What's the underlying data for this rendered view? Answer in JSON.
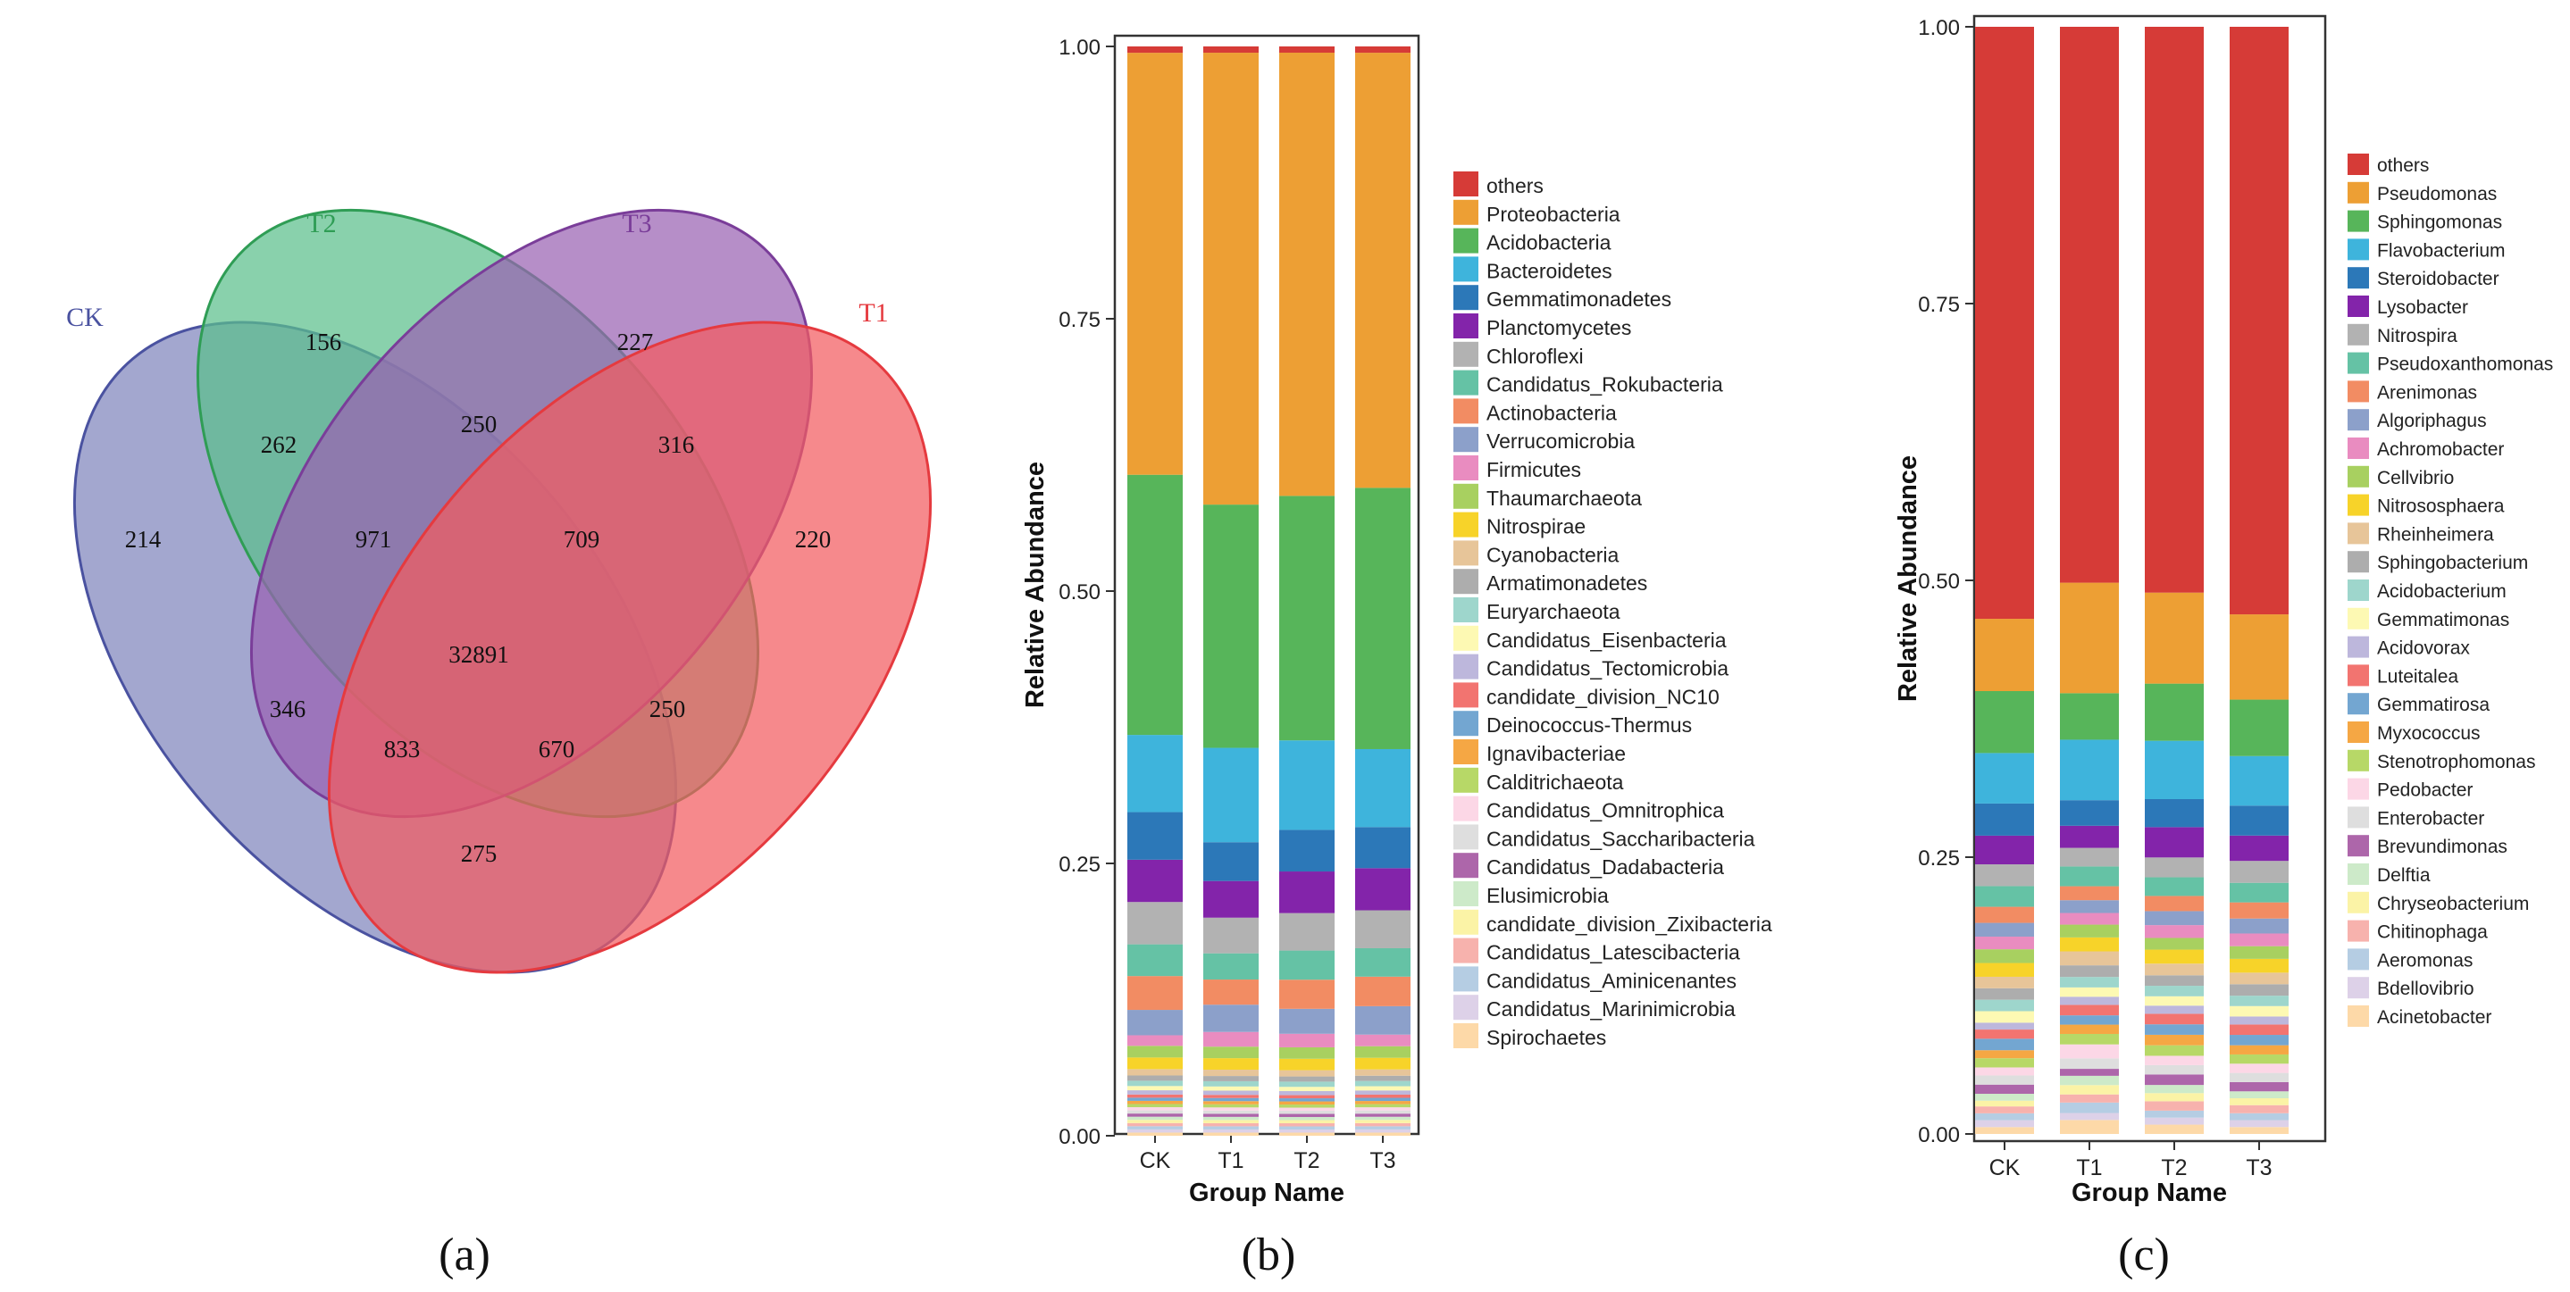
{
  "panels": {
    "a": {
      "caption": "(a)"
    },
    "b": {
      "caption": "(b)"
    },
    "c": {
      "caption": "(c)"
    }
  },
  "colors": {
    "ck": "#7f85bd",
    "t2": "#5bbf8c",
    "t3": "#9a63b3",
    "t1": "#f25b5f",
    "ck_stroke": "#4a52a0",
    "t2_stroke": "#2f9d55",
    "t3_stroke": "#7a3d99",
    "t1_stroke": "#e53a3f"
  },
  "chart_data": [
    {
      "type": "venn",
      "sets": [
        {
          "name": "CK",
          "color": "#7f85bd"
        },
        {
          "name": "T2",
          "color": "#5bbf8c"
        },
        {
          "name": "T3",
          "color": "#9a63b3"
        },
        {
          "name": "T1",
          "color": "#f25b5f"
        }
      ],
      "regions": [
        {
          "sets": [
            "CK"
          ],
          "value": "214"
        },
        {
          "sets": [
            "T2"
          ],
          "value": "156"
        },
        {
          "sets": [
            "T3"
          ],
          "value": "227"
        },
        {
          "sets": [
            "T1"
          ],
          "value": "220"
        },
        {
          "sets": [
            "CK",
            "T2"
          ],
          "value": "262"
        },
        {
          "sets": [
            "T2",
            "T3"
          ],
          "value": "250"
        },
        {
          "sets": [
            "T3",
            "T1"
          ],
          "value": "316"
        },
        {
          "sets": [
            "CK",
            "T2",
            "T3"
          ],
          "value": "971"
        },
        {
          "sets": [
            "T2",
            "T3",
            "T1"
          ],
          "value": "709"
        },
        {
          "sets": [
            "CK",
            "T2",
            "T3",
            "T1"
          ],
          "value": "32891"
        },
        {
          "sets": [
            "CK",
            "T3"
          ],
          "value": "346"
        },
        {
          "sets": [
            "T2",
            "T1"
          ],
          "value": "250"
        },
        {
          "sets": [
            "CK",
            "T3",
            "T1"
          ],
          "value": "833"
        },
        {
          "sets": [
            "CK",
            "T2",
            "T1"
          ],
          "value": "670"
        },
        {
          "sets": [
            "CK",
            "T1"
          ],
          "value": "275"
        }
      ]
    },
    {
      "type": "bar",
      "stacked": true,
      "xlabel": "Group Name",
      "ylabel": "Relative Abundance",
      "ylim": [
        0,
        1
      ],
      "yticks": [
        "0.00",
        "0.25",
        "0.50",
        "0.75",
        "1.00"
      ],
      "categories": [
        "CK",
        "T1",
        "T2",
        "T3"
      ],
      "legend_position": "right",
      "series": [
        {
          "name": "Spirochaetes",
          "color": "#fdd9a8",
          "values": [
            0.003,
            0.003,
            0.003,
            0.003
          ]
        },
        {
          "name": "Candidatus_Marinimicrobia",
          "color": "#ddd1e8",
          "values": [
            0.003,
            0.003,
            0.003,
            0.003
          ]
        },
        {
          "name": "Candidatus_Aminicenantes",
          "color": "#b5cde3",
          "values": [
            0.003,
            0.003,
            0.003,
            0.003
          ]
        },
        {
          "name": "Candidatus_Latescibacteria",
          "color": "#f7b2ad",
          "values": [
            0.003,
            0.003,
            0.003,
            0.003
          ]
        },
        {
          "name": "candidate_division_Zixibacteria",
          "color": "#fbf3a6",
          "values": [
            0.003,
            0.003,
            0.003,
            0.003
          ]
        },
        {
          "name": "Elusimicrobia",
          "color": "#cdeac9",
          "values": [
            0.003,
            0.003,
            0.003,
            0.003
          ]
        },
        {
          "name": "Candidatus_Dadabacteria",
          "color": "#ad66aa",
          "values": [
            0.003,
            0.003,
            0.003,
            0.003
          ]
        },
        {
          "name": "Candidatus_Saccharibacteria",
          "color": "#dedede",
          "values": [
            0.003,
            0.003,
            0.003,
            0.003
          ]
        },
        {
          "name": "Candidatus_Omnitrophica",
          "color": "#fcd7e6",
          "values": [
            0.003,
            0.003,
            0.003,
            0.003
          ]
        },
        {
          "name": "Calditrichaeota",
          "color": "#b7d867",
          "values": [
            0.003,
            0.003,
            0.003,
            0.003
          ]
        },
        {
          "name": "Ignavibacteriae",
          "color": "#f5a744",
          "values": [
            0.003,
            0.003,
            0.003,
            0.003
          ]
        },
        {
          "name": "Deinococcus-Thermus",
          "color": "#73a6d1",
          "values": [
            0.003,
            0.003,
            0.003,
            0.003
          ]
        },
        {
          "name": "candidate_division_NC10",
          "color": "#f27470",
          "values": [
            0.003,
            0.003,
            0.003,
            0.003
          ]
        },
        {
          "name": "Candidatus_Tectomicrobia",
          "color": "#bdb7dc",
          "values": [
            0.004,
            0.004,
            0.004,
            0.004
          ]
        },
        {
          "name": "Candidatus_Eisenbacteria",
          "color": "#fdf9b3",
          "values": [
            0.004,
            0.004,
            0.004,
            0.004
          ]
        },
        {
          "name": "Euryarchaeota",
          "color": "#9ed6cc",
          "values": [
            0.005,
            0.005,
            0.005,
            0.005
          ]
        },
        {
          "name": "Armatimonadetes",
          "color": "#adadad",
          "values": [
            0.005,
            0.005,
            0.005,
            0.005
          ]
        },
        {
          "name": "Cyanobacteria",
          "color": "#e7c599",
          "values": [
            0.006,
            0.006,
            0.006,
            0.006
          ]
        },
        {
          "name": "Nitrospirae",
          "color": "#f7d329",
          "values": [
            0.011,
            0.011,
            0.011,
            0.011
          ]
        },
        {
          "name": "Thaumarchaeota",
          "color": "#a8d060",
          "values": [
            0.011,
            0.011,
            0.011,
            0.011
          ]
        },
        {
          "name": "Firmicutes",
          "color": "#e98cc0",
          "values": [
            0.01,
            0.014,
            0.013,
            0.011
          ]
        },
        {
          "name": "Verrucomicrobia",
          "color": "#8ca0ca",
          "values": [
            0.024,
            0.026,
            0.024,
            0.027
          ]
        },
        {
          "name": "Actinobacteria",
          "color": "#f28c63",
          "values": [
            0.032,
            0.024,
            0.028,
            0.028
          ]
        },
        {
          "name": "Candidatus_Rokubacteria",
          "color": "#65c2a5",
          "values": [
            0.03,
            0.025,
            0.028,
            0.027
          ]
        },
        {
          "name": "Chloroflexi",
          "color": "#b2b2b2",
          "values": [
            0.04,
            0.034,
            0.036,
            0.036
          ]
        },
        {
          "name": "Planctomycetes",
          "color": "#8324aa",
          "values": [
            0.04,
            0.035,
            0.04,
            0.04
          ]
        },
        {
          "name": "Gemmatimonadetes",
          "color": "#2c78b8",
          "values": [
            0.045,
            0.037,
            0.04,
            0.039
          ]
        },
        {
          "name": "Bacteroidetes",
          "color": "#3eb4dc",
          "values": [
            0.073,
            0.09,
            0.086,
            0.074
          ]
        },
        {
          "name": "Acidobacteria",
          "color": "#57b55a",
          "values": [
            0.246,
            0.232,
            0.235,
            0.248
          ]
        },
        {
          "name": "Proteobacteria",
          "color": "#ed9f34",
          "values": [
            0.399,
            0.431,
            0.426,
            0.413
          ]
        },
        {
          "name": "others",
          "color": "#d63b37",
          "values": [
            0.006,
            0.006,
            0.006,
            0.006
          ]
        }
      ]
    },
    {
      "type": "bar",
      "stacked": true,
      "xlabel": "Group Name",
      "ylabel": "Relative Abundance",
      "ylim": [
        0,
        1
      ],
      "yticks": [
        "0.00",
        "0.25",
        "0.50",
        "0.75",
        "1.00"
      ],
      "categories": [
        "CK",
        "T1",
        "T2",
        "T3"
      ],
      "legend_position": "right",
      "series": [
        {
          "name": "Acinetobacter",
          "color": "#fdd9a8",
          "values": [
            0.006,
            0.012,
            0.008,
            0.006
          ]
        },
        {
          "name": "Bdellovibrio",
          "color": "#ddd1e8",
          "values": [
            0.006,
            0.006,
            0.006,
            0.006
          ]
        },
        {
          "name": "Aeromonas",
          "color": "#b5cde3",
          "values": [
            0.006,
            0.009,
            0.006,
            0.006
          ]
        },
        {
          "name": "Chitinophaga",
          "color": "#f7b2ad",
          "values": [
            0.006,
            0.007,
            0.008,
            0.007
          ]
        },
        {
          "name": "Chryseobacterium",
          "color": "#fbf3a6",
          "values": [
            0.005,
            0.008,
            0.007,
            0.006
          ]
        },
        {
          "name": "Delftia",
          "color": "#cdeac9",
          "values": [
            0.006,
            0.008,
            0.007,
            0.006
          ]
        },
        {
          "name": "Brevundimonas",
          "color": "#ad66aa",
          "values": [
            0.008,
            0.006,
            0.009,
            0.008
          ]
        },
        {
          "name": "Enterobacter",
          "color": "#dedede",
          "values": [
            0.008,
            0.009,
            0.008,
            0.008
          ]
        },
        {
          "name": "Pedobacter",
          "color": "#fcd7e6",
          "values": [
            0.007,
            0.012,
            0.008,
            0.008
          ]
        },
        {
          "name": "Stenotrophomonas",
          "color": "#b7d867",
          "values": [
            0.008,
            0.009,
            0.009,
            0.008
          ]
        },
        {
          "name": "Myxococcus",
          "color": "#f5a744",
          "values": [
            0.007,
            0.008,
            0.009,
            0.008
          ]
        },
        {
          "name": "Gemmatirosa",
          "color": "#73a6d1",
          "values": [
            0.01,
            0.008,
            0.009,
            0.009
          ]
        },
        {
          "name": "Luteitalea",
          "color": "#f27470",
          "values": [
            0.008,
            0.009,
            0.009,
            0.009
          ]
        },
        {
          "name": "Acidovorax",
          "color": "#bdb7dc",
          "values": [
            0.006,
            0.007,
            0.007,
            0.007
          ]
        },
        {
          "name": "Gemmatimonas",
          "color": "#fdf9b3",
          "values": [
            0.01,
            0.008,
            0.008,
            0.009
          ]
        },
        {
          "name": "Acidobacterium",
          "color": "#9ed6cc",
          "values": [
            0.01,
            0.009,
            0.009,
            0.009
          ]
        },
        {
          "name": "Sphingobacterium",
          "color": "#adadad",
          "values": [
            0.01,
            0.01,
            0.009,
            0.01
          ]
        },
        {
          "name": "Rheinheimera",
          "color": "#e7c599",
          "values": [
            0.01,
            0.012,
            0.01,
            0.01
          ]
        },
        {
          "name": "Nitrososphaera",
          "color": "#f7d329",
          "values": [
            0.012,
            0.012,
            0.012,
            0.012
          ]
        },
        {
          "name": "Cellvibrio",
          "color": "#a8d060",
          "values": [
            0.012,
            0.011,
            0.01,
            0.011
          ]
        },
        {
          "name": "Achromobacter",
          "color": "#e98cc0",
          "values": [
            0.011,
            0.01,
            0.011,
            0.011
          ]
        },
        {
          "name": "Algoriphagus",
          "color": "#8ca0ca",
          "values": [
            0.012,
            0.011,
            0.012,
            0.013
          ]
        },
        {
          "name": "Arenimonas",
          "color": "#f28c63",
          "values": [
            0.014,
            0.012,
            0.013,
            0.014
          ]
        },
        {
          "name": "Pseudoxanthomonas",
          "color": "#65c2a5",
          "values": [
            0.018,
            0.017,
            0.016,
            0.017
          ]
        },
        {
          "name": "Nitrospira",
          "color": "#b2b2b2",
          "values": [
            0.019,
            0.016,
            0.017,
            0.019
          ]
        },
        {
          "name": "Lysobacter",
          "color": "#8324aa",
          "values": [
            0.025,
            0.019,
            0.026,
            0.022
          ]
        },
        {
          "name": "Steroidobacter",
          "color": "#2c78b8",
          "values": [
            0.028,
            0.022,
            0.024,
            0.026
          ]
        },
        {
          "name": "Flavobacterium",
          "color": "#3eb4dc",
          "values": [
            0.044,
            0.052,
            0.05,
            0.043
          ]
        },
        {
          "name": "Sphingomonas",
          "color": "#57b55a",
          "values": [
            0.054,
            0.04,
            0.049,
            0.049
          ]
        },
        {
          "name": "Pseudomonas",
          "color": "#ed9f34",
          "values": [
            0.063,
            0.095,
            0.078,
            0.074
          ]
        },
        {
          "name": "others",
          "color": "#d63b37",
          "values": [
            0.516,
            0.478,
            0.485,
            0.51
          ]
        }
      ]
    }
  ]
}
